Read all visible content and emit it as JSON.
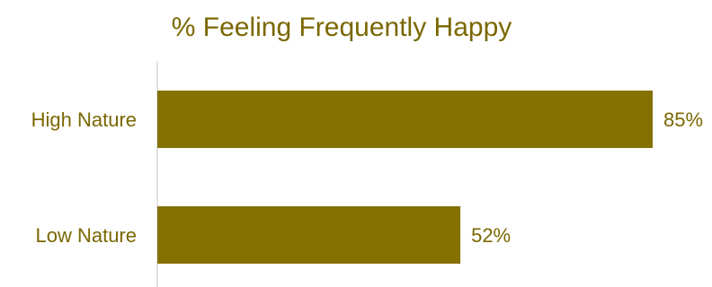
{
  "chart_data": {
    "type": "bar",
    "orientation": "horizontal",
    "title": "% Feeling Frequently Happy",
    "xlabel": "",
    "ylabel": "",
    "categories": [
      "High Nature",
      "Low Nature"
    ],
    "values": [
      85,
      52
    ],
    "value_labels": [
      "85%",
      "52%"
    ],
    "xlim": [
      0,
      85
    ],
    "grid": false,
    "legend": "none",
    "colors": {
      "bar": "#857100",
      "text": "#7a6700",
      "axis": "#d9d9d9"
    }
  }
}
